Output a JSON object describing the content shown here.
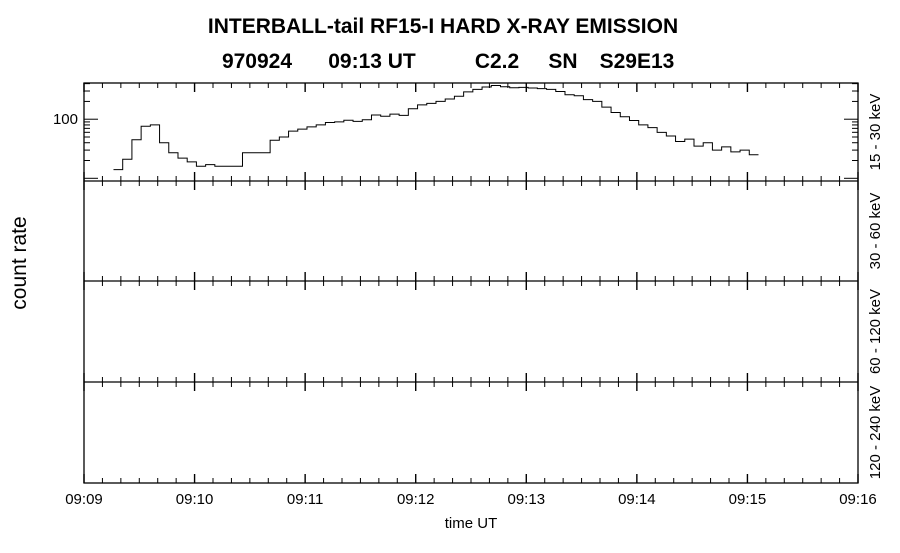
{
  "chart_data": {
    "type": "line",
    "title": "INTERBALL-tail  RF15-I  HARD  X-RAY  EMISSION",
    "subtitle": {
      "date": "970924",
      "time": "09:13 UT",
      "class": "C2.2",
      "type": "SN",
      "location": "S29E13"
    },
    "xlabel": "time UT",
    "ylabel": "count rate",
    "x_ticks": [
      "09:09",
      "09:10",
      "09:11",
      "09:12",
      "09:13",
      "09:14",
      "09:15",
      "09:16"
    ],
    "xlim_minutes_after_0909": [
      0,
      7
    ],
    "panels": [
      {
        "band": "15 - 30 keV",
        "yscale": "log",
        "ylim": [
          9,
          410
        ],
        "y_tick_labels": [
          "100"
        ],
        "series": {
          "name": "15 - 30 keV",
          "start_seconds_after_0909": 16,
          "bin_seconds": 5,
          "values": [
            14,
            21,
            45,
            76,
            80,
            40,
            27,
            22,
            19,
            16,
            17,
            16,
            16,
            16,
            27,
            27,
            27,
            44,
            50,
            63,
            68,
            74,
            80,
            88,
            90,
            96,
            92,
            98,
            118,
            112,
            122,
            116,
            150,
            175,
            185,
            200,
            220,
            245,
            290,
            320,
            350,
            372,
            355,
            340,
            345,
            338,
            330,
            320,
            295,
            260,
            250,
            215,
            200,
            160,
            130,
            110,
            95,
            80,
            72,
            60,
            52,
            42,
            46,
            35,
            40,
            30,
            34,
            28,
            30,
            25
          ]
        }
      },
      {
        "band": "30 - 60 keV"
      },
      {
        "band": "60 - 120 keV"
      },
      {
        "band": "120 - 240 keV"
      }
    ]
  }
}
